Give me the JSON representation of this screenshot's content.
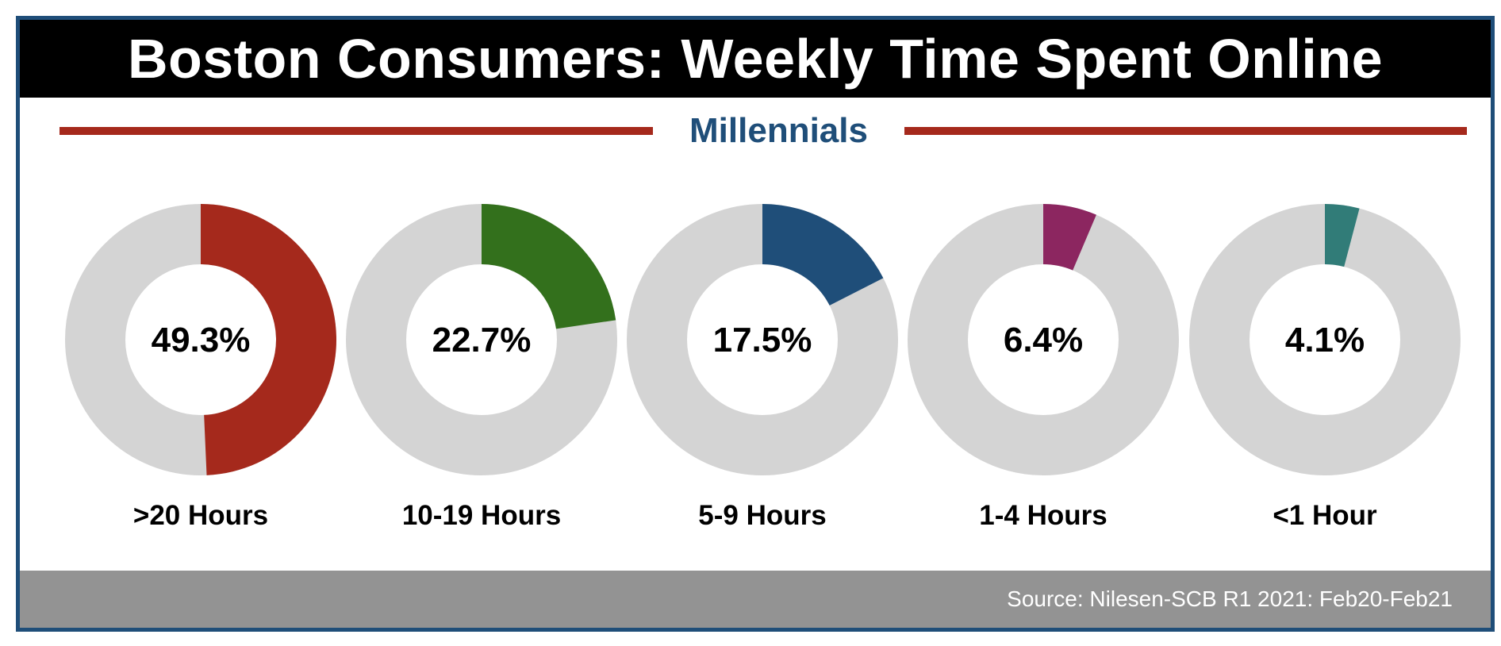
{
  "title": "Boston Consumers: Weekly Time Spent Online",
  "subtitle": "Millennials",
  "source": "Source: Nilesen-SCB R1 2021: Feb20-Feb21",
  "colors": {
    "frame_border": "#1f4e79",
    "title_background": "#000000",
    "subtitle_text": "#1f4e79",
    "divider": "#a5291c",
    "ring_track": "#d4d4d4",
    "footer_background": "#939393"
  },
  "chart_data": {
    "type": "pie",
    "style": "donut",
    "categories": [
      ">20 Hours",
      "10-19 Hours",
      "5-9 Hours",
      "1-4 Hours",
      "<1 Hour"
    ],
    "values": [
      49.3,
      22.7,
      17.5,
      6.4,
      4.1
    ],
    "value_labels": [
      "49.3%",
      "22.7%",
      "17.5%",
      "6.4%",
      "4.1%"
    ],
    "colors": [
      "#a5291c",
      "#33701c",
      "#1f4e79",
      "#8c2660",
      "#317c78"
    ],
    "max": 100,
    "unit": "%"
  }
}
